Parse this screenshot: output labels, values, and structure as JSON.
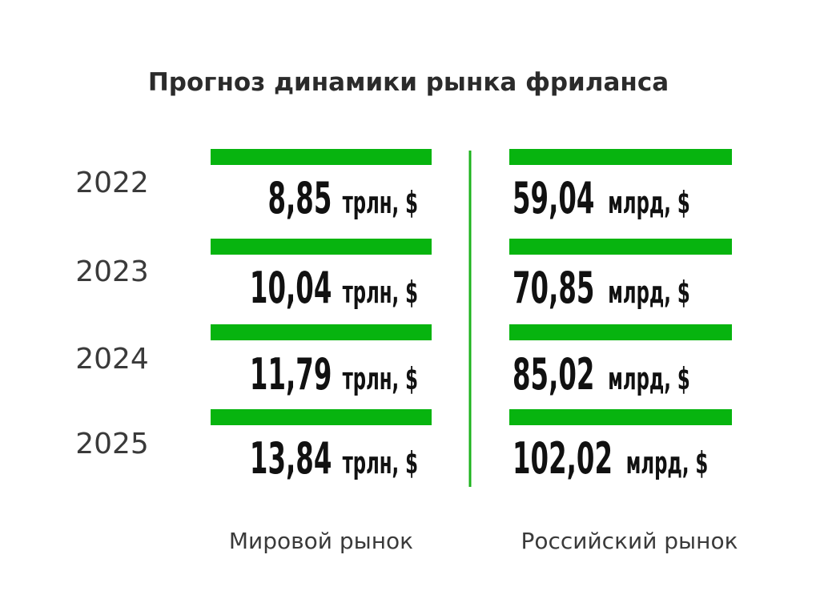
{
  "title": "Прогноз динамики рынка фриланса",
  "rows": [
    {
      "year": "2022",
      "world": {
        "value": "8,85",
        "unit": "трлн, $"
      },
      "russia": {
        "value": "59,04",
        "unit": "млрд, $"
      }
    },
    {
      "year": "2023",
      "world": {
        "value": "10,04",
        "unit": "трлн, $"
      },
      "russia": {
        "value": "70,85",
        "unit": "млрд, $"
      }
    },
    {
      "year": "2024",
      "world": {
        "value": "11,79",
        "unit": "трлн, $"
      },
      "russia": {
        "value": "85,02",
        "unit": "млрд, $"
      }
    },
    {
      "year": "2025",
      "world": {
        "value": "13,84",
        "unit": "трлн, $"
      },
      "russia": {
        "value": "102,02",
        "unit": "млрд, $"
      }
    }
  ],
  "columns": {
    "world": "Мировой рынок",
    "russia": "Российский рынок"
  }
}
